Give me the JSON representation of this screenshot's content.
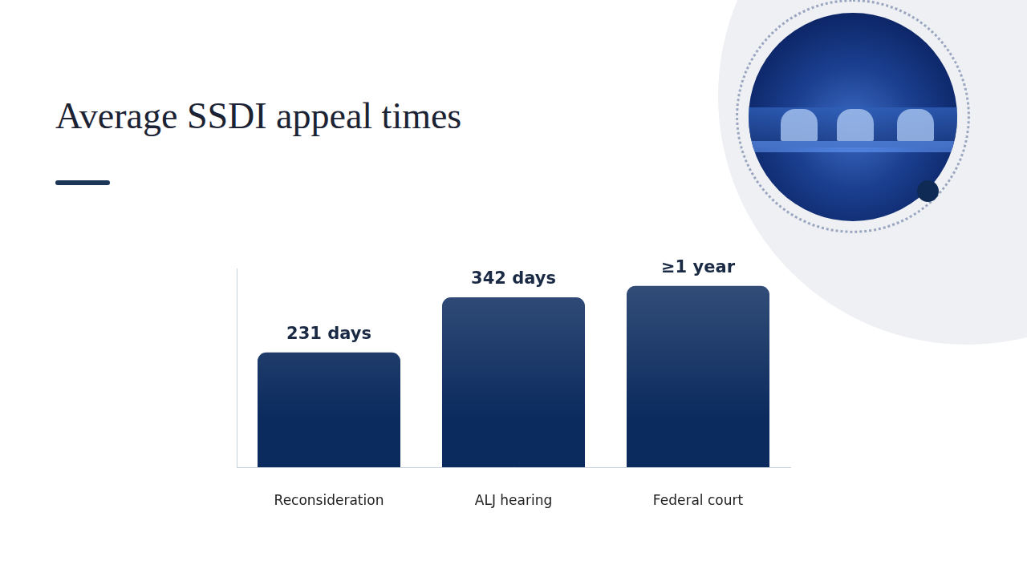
{
  "chart_data": {
    "type": "bar",
    "title": "Average SSDI appeal times",
    "categories": [
      "Reconsideration",
      "ALJ hearing",
      "Federal court"
    ],
    "values": [
      231,
      342,
      365
    ],
    "value_labels": [
      "231 days",
      "342 days",
      "≥1 year"
    ],
    "color": "#0b2b5e",
    "ylim": [
      0,
      400
    ],
    "grid": false,
    "data_labels": true,
    "tick_labels": "x"
  }
}
